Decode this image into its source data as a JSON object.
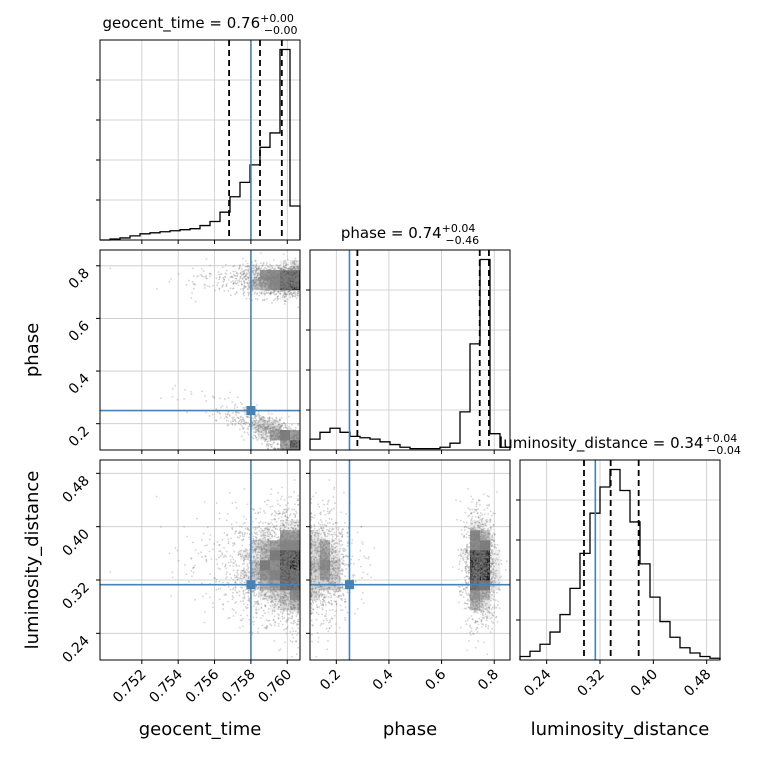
{
  "chart_data": {
    "type": "corner",
    "parameters": [
      {
        "name": "geocent_time",
        "axis_label": "geocent_time",
        "range": [
          0.7497,
          0.7607
        ],
        "ticks": [
          0.752,
          0.754,
          0.756,
          0.758,
          0.76
        ],
        "tick_labels": [
          "0.752",
          "0.754",
          "0.756",
          "0.758",
          "0.760"
        ],
        "title": {
          "prefix": "geocent_time = 0.76",
          "sup": "+0.00",
          "sub": "−0.00"
        },
        "truth": 0.758,
        "quantiles": [
          0.7568,
          0.7585,
          0.7597
        ],
        "histogram": {
          "edges": [
            0.7497,
            0.75025,
            0.7508,
            0.75135,
            0.7519,
            0.75245,
            0.753,
            0.75355,
            0.7541,
            0.75465,
            0.7552,
            0.75575,
            0.7563,
            0.75685,
            0.7574,
            0.75795,
            0.7585,
            0.75905,
            0.7596,
            0.76015,
            0.7607
          ],
          "counts": [
            0,
            1,
            2,
            4,
            6,
            7,
            8,
            9,
            10,
            11,
            14,
            18,
            27,
            42,
            56,
            73,
            90,
            104,
            185,
            33
          ]
        }
      },
      {
        "name": "phase",
        "axis_label": "phase",
        "range": [
          0.1,
          0.86
        ],
        "ticks": [
          0.2,
          0.4,
          0.6,
          0.8
        ],
        "tick_labels": [
          "0.2",
          "0.4",
          "0.6",
          "0.8"
        ],
        "title": {
          "prefix": "phase = 0.74",
          "sup": "+0.04",
          "sub": "−0.46"
        },
        "truth": 0.25,
        "quantiles": [
          0.28,
          0.745,
          0.78
        ],
        "histogram": {
          "edges": [
            0.1,
            0.138,
            0.176,
            0.214,
            0.252,
            0.29,
            0.328,
            0.366,
            0.404,
            0.442,
            0.48,
            0.518,
            0.556,
            0.594,
            0.632,
            0.67,
            0.708,
            0.746,
            0.784,
            0.822,
            0.86
          ],
          "counts": [
            8,
            13,
            16,
            13,
            10,
            9,
            8,
            6,
            4,
            2,
            1,
            1,
            1,
            2,
            5,
            28,
            78,
            140,
            12,
            2
          ]
        }
      },
      {
        "name": "luminosity_distance",
        "axis_label": "luminosity_distance",
        "range": [
          0.2,
          0.5
        ],
        "ticks": [
          0.24,
          0.32,
          0.4,
          0.48
        ],
        "tick_labels": [
          "0.24",
          "0.32",
          "0.40",
          "0.48"
        ],
        "title": {
          "prefix": "luminosity_distance = 0.34",
          "sup": "+0.04",
          "sub": "−0.04"
        },
        "truth": 0.313,
        "quantiles": [
          0.296,
          0.336,
          0.378
        ],
        "histogram": {
          "edges": [
            0.2,
            0.215,
            0.23,
            0.245,
            0.26,
            0.275,
            0.29,
            0.305,
            0.32,
            0.335,
            0.35,
            0.365,
            0.38,
            0.395,
            0.41,
            0.425,
            0.44,
            0.455,
            0.47,
            0.485,
            0.5
          ],
          "counts": [
            2,
            5,
            9,
            16,
            26,
            41,
            61,
            84,
            99,
            109,
            97,
            79,
            55,
            36,
            22,
            13,
            7,
            4,
            2,
            1
          ]
        }
      }
    ],
    "axis_label_fontsize": 18,
    "tick_label_rotation": 45,
    "grid": true,
    "truth_color": "#4682b4",
    "hist_color": "#000000",
    "scatter_color": "#808080"
  }
}
